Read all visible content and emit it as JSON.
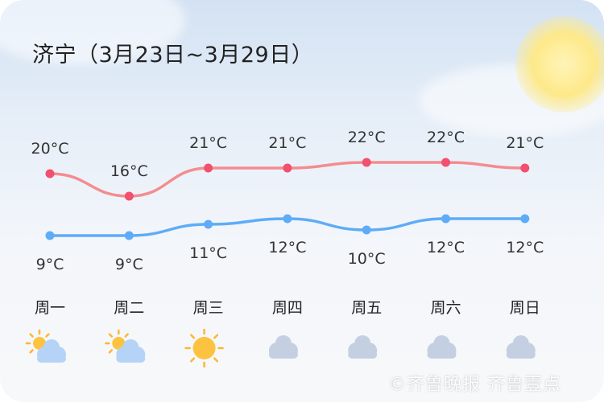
{
  "title": "济宁（3月23日~3月29日）",
  "watermark": "©齐鲁晚报 齐鲁壹点",
  "chart_data": {
    "type": "line",
    "categories": [
      "周一",
      "周二",
      "周三",
      "周四",
      "周五",
      "周六",
      "周日"
    ],
    "unit": "°C",
    "series": [
      {
        "key": "high",
        "values": [
          20,
          16,
          21,
          21,
          22,
          22,
          21
        ],
        "color": "#f38d90",
        "point_color": "#f2506e"
      },
      {
        "key": "low",
        "values": [
          9,
          9,
          11,
          12,
          10,
          12,
          12
        ],
        "color": "#5eacf8",
        "point_color": "#5eacf8"
      }
    ],
    "weather_icons": [
      "partly-cloudy",
      "partly-cloudy",
      "sunny",
      "cloudy",
      "cloudy",
      "cloudy",
      "cloudy"
    ]
  }
}
